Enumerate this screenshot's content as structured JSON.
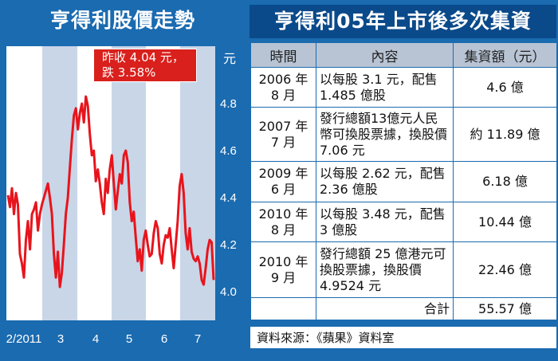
{
  "left_title": "亨得利股價走勢",
  "callout": {
    "line1": "昨收 4.04 元，",
    "line2": "跌 3.58%"
  },
  "colors": {
    "background": "#1a6bb0",
    "stripe_light": "#ffffff",
    "stripe_dark": "#c8d6e8",
    "line": "#e8141c",
    "callout": "#d9201c",
    "header": "#b8c4d4"
  },
  "chart_data": {
    "type": "line",
    "title": "亨得利股價走勢",
    "ylabel": "元",
    "ylim": [
      3.95,
      4.95
    ],
    "yticks": [
      "4.8",
      "4.6",
      "4.4",
      "4.2",
      "4.0"
    ],
    "xticks": [
      "2/2011",
      "3",
      "4",
      "5",
      "6",
      "7"
    ],
    "grid": false,
    "series": [
      {
        "values": [
          4.41,
          4.36,
          4.44,
          4.33,
          4.42,
          4.37,
          4.16,
          4.12,
          4.06,
          4.22,
          4.3,
          4.18,
          4.33,
          4.35,
          4.38,
          4.26,
          4.33,
          4.37,
          4.4,
          4.43,
          4.46,
          4.4,
          4.33,
          4.16,
          4.06,
          4.17,
          4.02,
          4.08,
          4.2,
          4.33,
          4.4,
          4.53,
          4.65,
          4.75,
          4.78,
          4.69,
          4.76,
          4.8,
          4.72,
          4.83,
          4.79,
          4.67,
          4.58,
          4.6,
          4.47,
          4.52,
          4.46,
          4.38,
          4.33,
          4.48,
          4.42,
          4.52,
          4.58,
          4.46,
          4.35,
          4.43,
          4.5,
          4.46,
          4.58,
          4.6,
          4.55,
          4.38,
          4.3,
          4.34,
          4.23,
          4.13,
          4.18,
          4.09,
          4.22,
          4.26,
          4.2,
          4.15,
          4.16,
          4.25,
          4.3,
          4.27,
          4.16,
          4.12,
          4.2,
          4.24,
          4.23,
          4.27,
          4.18,
          4.1,
          4.2,
          4.3,
          4.45,
          4.5,
          4.42,
          4.25,
          4.18,
          4.27,
          4.17,
          4.14,
          4.13,
          4.15,
          4.12,
          4.05,
          4.03,
          4.1,
          4.18,
          4.22,
          4.21,
          4.05
        ]
      }
    ]
  },
  "right_title": "亨得利05年上市後多次集資",
  "table": {
    "headers": [
      "時間",
      "內容",
      "集資額（元）"
    ],
    "rows": [
      {
        "date1": "2006 年",
        "date2": "8 月",
        "content": "以每股 3.1 元，配售 1.485 億股",
        "amount": "4.6 億"
      },
      {
        "date1": "2007 年",
        "date2": "7 月",
        "content": "發行總額13億元人民幣可換股票據，換股價 7.06 元",
        "amount": "約 11.89 億"
      },
      {
        "date1": "2009 年",
        "date2": "6 月",
        "content": "以每股 2.62 元，配售 2.36 億股",
        "amount": "6.18 億"
      },
      {
        "date1": "2010 年",
        "date2": "8 月",
        "content": "以每股 3.48 元，配售 3 億股",
        "amount": "10.44 億"
      },
      {
        "date1": "2010 年",
        "date2": "9 月",
        "content": "發行總額 25 億港元可換股票據，換股價 4.9524 元",
        "amount": "22.46 億"
      }
    ],
    "total_label": "合計",
    "total_amount": "55.57 億"
  },
  "source": "資料來源：《蘋果》資料室"
}
